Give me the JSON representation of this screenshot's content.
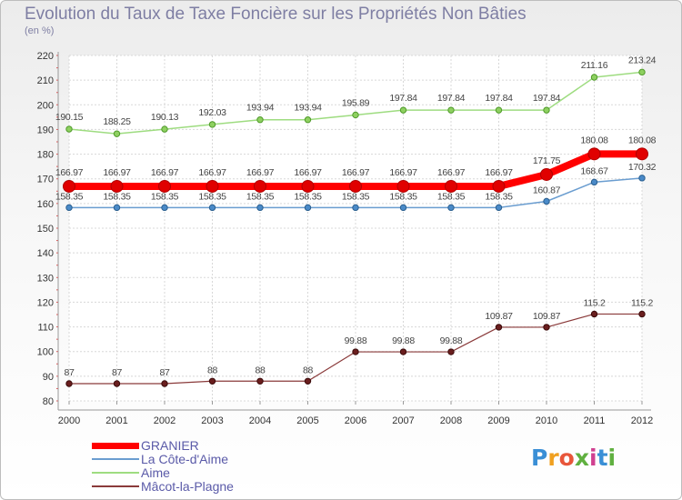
{
  "chart_data": {
    "type": "line",
    "title": "Evolution du Taux de Taxe Foncière sur les Propriétés Non Bâties",
    "subtitle": "(en %)",
    "xlabel": "",
    "ylabel": "(en %)",
    "x": [
      "2000",
      "2001",
      "2002",
      "2003",
      "2004",
      "2005",
      "2006",
      "2007",
      "2008",
      "2009",
      "2010",
      "2011",
      "2012"
    ],
    "ylim": [
      80,
      220
    ],
    "yticks": [
      80,
      90,
      100,
      110,
      120,
      130,
      140,
      150,
      160,
      170,
      180,
      190,
      200,
      210,
      220
    ],
    "grid": true,
    "legend_position": "bottom-left",
    "series": [
      {
        "name": "GRANIER",
        "color": "#ff0000",
        "values": [
          166.97,
          166.97,
          166.97,
          166.97,
          166.97,
          166.97,
          166.97,
          166.97,
          166.97,
          166.97,
          171.75,
          180.08,
          180.08
        ],
        "labels": [
          "166.97",
          "166.97",
          "166.97",
          "166.97",
          "166.97",
          "166.97",
          "166.97",
          "166.97",
          "166.97",
          "166.97",
          "171.75",
          "180.08",
          "180.08"
        ]
      },
      {
        "name": "La Côte-d'Aime",
        "color": "#6a9dd0",
        "values": [
          158.35,
          158.35,
          158.35,
          158.35,
          158.35,
          158.35,
          158.35,
          158.35,
          158.35,
          158.35,
          160.87,
          168.67,
          170.32
        ],
        "labels": [
          "158.35",
          "158.35",
          "158.35",
          "158.35",
          "158.35",
          "158.35",
          "158.35",
          "158.35",
          "158.35",
          "158.35",
          "160.87",
          "168.67",
          "170.32"
        ]
      },
      {
        "name": "Aime",
        "color": "#9edc80",
        "values": [
          190.15,
          188.25,
          190.13,
          192.03,
          193.94,
          193.94,
          195.89,
          197.84,
          197.84,
          197.84,
          197.84,
          211.16,
          213.24
        ],
        "labels": [
          "190.15",
          "188.25",
          "190.13",
          "192.03",
          "193.94",
          "193.94",
          "195.89",
          "197.84",
          "197.84",
          "197.84",
          "197.84",
          "211.16",
          "213.24"
        ]
      },
      {
        "name": "Mâcot-la-Plagne",
        "color": "#8a3a3a",
        "values": [
          87,
          87,
          87,
          88,
          88,
          88,
          99.88,
          99.88,
          99.88,
          109.87,
          109.87,
          115.2,
          115.2
        ],
        "labels": [
          "87",
          "87",
          "87",
          "88",
          "88",
          "88",
          "99.88",
          "99.88",
          "99.88",
          "109.87",
          "109.87",
          "115.2",
          "115.2"
        ]
      }
    ]
  },
  "logo": {
    "text": "Proxiti",
    "letters": [
      "P",
      "r",
      "o",
      "x",
      "i",
      "t",
      "i"
    ],
    "colors": [
      "#3a8fd6",
      "#f0a020",
      "#e8563a",
      "#60b040",
      "#d04090",
      "#3a8fd6",
      "#60b040"
    ]
  }
}
